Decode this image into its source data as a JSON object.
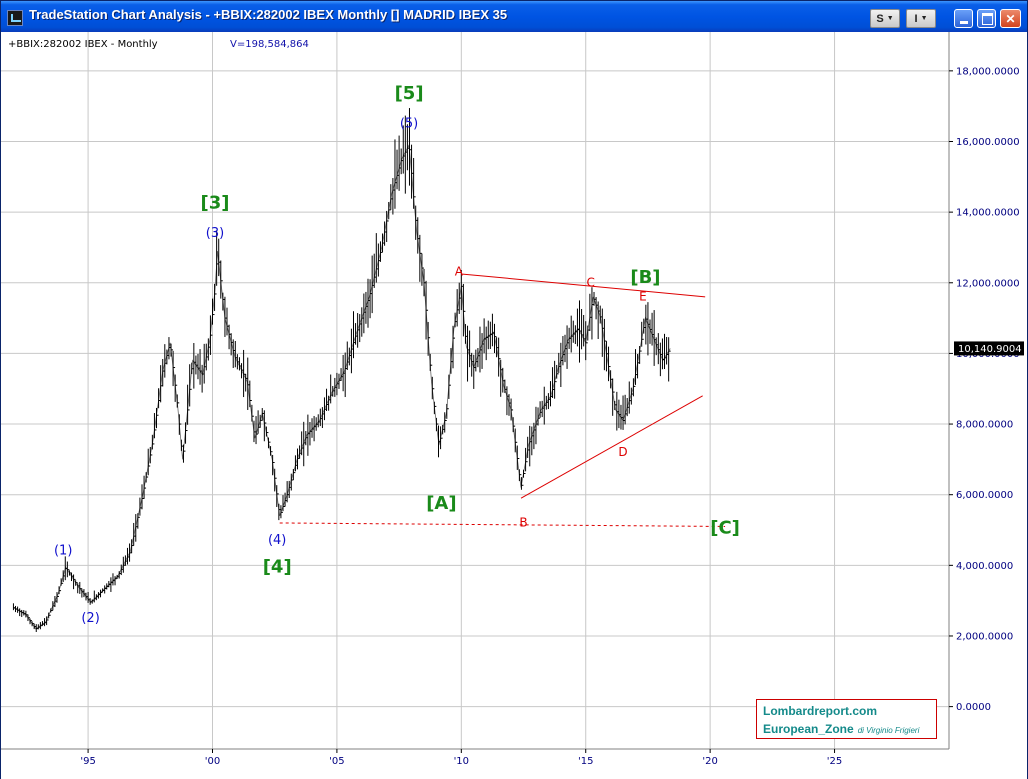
{
  "window": {
    "title": "TradeStation Chart Analysis - +BBIX:282002 IBEX Monthly [] MADRID IBEX 35",
    "buttons": {
      "s_label": "S",
      "i_label": "I"
    }
  },
  "header": {
    "symbol_label": "+BBIX:282002 IBEX - Monthly",
    "volume_label": "V=198,584,864"
  },
  "branding": {
    "line1": "Lombardreport.com",
    "line2": "European_Zone",
    "line2_suffix": "di Virginio Frigieri"
  },
  "colors": {
    "price": "#000000",
    "wave_degree_large": "#1a8a1a",
    "wave_degree_small": "#1010cc",
    "abcde": "#dd0000",
    "grid": "#c8c8c8",
    "axis_text": "#000080"
  },
  "chart_data": {
    "type": "line",
    "title": "",
    "xlabel": "",
    "ylabel": "",
    "x_ticks": [
      {
        "year": 1995,
        "label": "'95"
      },
      {
        "year": 2000,
        "label": "'00"
      },
      {
        "year": 2005,
        "label": "'05"
      },
      {
        "year": 2010,
        "label": "'10"
      },
      {
        "year": 2015,
        "label": "'15"
      },
      {
        "year": 2020,
        "label": "'20"
      },
      {
        "year": 2025,
        "label": "'25"
      }
    ],
    "y_ticks": [
      {
        "value": 0,
        "label": "0.0000"
      },
      {
        "value": 2000,
        "label": "2,000.0000"
      },
      {
        "value": 4000,
        "label": "4,000.0000"
      },
      {
        "value": 6000,
        "label": "6,000.0000"
      },
      {
        "value": 8000,
        "label": "8,000.0000"
      },
      {
        "value": 10000,
        "label": "10,000.0000"
      },
      {
        "value": 12000,
        "label": "12,000.0000"
      },
      {
        "value": 14000,
        "label": "14,000.0000"
      },
      {
        "value": 16000,
        "label": "16,000.0000"
      },
      {
        "value": 18000,
        "label": "18,000.0000"
      }
    ],
    "xlim": [
      1991.5,
      2029.6
    ],
    "ylim": [
      -1200,
      19100
    ],
    "grid": true,
    "last_value": 10140.9004,
    "last_value_label": "10,140.9004",
    "series": [
      {
        "values": [
          [
            1992.0,
            2800
          ],
          [
            1992.5,
            2600
          ],
          [
            1992.9,
            2200
          ],
          [
            1993.3,
            2400
          ],
          [
            1993.8,
            3200
          ],
          [
            1994.1,
            3950
          ],
          [
            1994.6,
            3400
          ],
          [
            1995.1,
            2950
          ],
          [
            1995.6,
            3300
          ],
          [
            1996.2,
            3700
          ],
          [
            1996.7,
            4400
          ],
          [
            1997.2,
            6000
          ],
          [
            1997.6,
            7500
          ],
          [
            1998.0,
            9500
          ],
          [
            1998.3,
            10300
          ],
          [
            1998.6,
            8500
          ],
          [
            1998.8,
            7000
          ],
          [
            1999.2,
            9800
          ],
          [
            1999.6,
            9400
          ],
          [
            1999.9,
            10400
          ],
          [
            2000.1,
            11800
          ],
          [
            2000.2,
            12900
          ],
          [
            2000.5,
            11000
          ],
          [
            2000.9,
            9900
          ],
          [
            2001.4,
            9200
          ],
          [
            2001.7,
            7600
          ],
          [
            2002.0,
            8300
          ],
          [
            2002.4,
            7000
          ],
          [
            2002.7,
            5400
          ],
          [
            2003.0,
            6000
          ],
          [
            2003.4,
            7000
          ],
          [
            2003.8,
            7700
          ],
          [
            2004.3,
            8100
          ],
          [
            2004.8,
            8900
          ],
          [
            2005.3,
            9500
          ],
          [
            2005.8,
            10600
          ],
          [
            2006.3,
            11600
          ],
          [
            2006.8,
            13000
          ],
          [
            2007.2,
            14500
          ],
          [
            2007.6,
            15500
          ],
          [
            2007.9,
            15900
          ],
          [
            2008.2,
            13500
          ],
          [
            2008.5,
            12000
          ],
          [
            2008.8,
            9200
          ],
          [
            2009.1,
            7400
          ],
          [
            2009.4,
            8300
          ],
          [
            2009.7,
            10700
          ],
          [
            2010.0,
            11900
          ],
          [
            2010.2,
            10200
          ],
          [
            2010.5,
            9600
          ],
          [
            2010.9,
            10400
          ],
          [
            2011.3,
            10600
          ],
          [
            2011.7,
            9100
          ],
          [
            2012.0,
            8400
          ],
          [
            2012.4,
            6200
          ],
          [
            2012.7,
            7400
          ],
          [
            2013.2,
            8400
          ],
          [
            2013.6,
            8800
          ],
          [
            2013.9,
            9600
          ],
          [
            2014.3,
            10400
          ],
          [
            2014.7,
            10700
          ],
          [
            2015.0,
            10300
          ],
          [
            2015.3,
            11600
          ],
          [
            2015.6,
            11000
          ],
          [
            2015.9,
            9700
          ],
          [
            2016.2,
            8400
          ],
          [
            2016.5,
            8100
          ],
          [
            2016.9,
            9000
          ],
          [
            2017.2,
            10200
          ],
          [
            2017.4,
            11000
          ],
          [
            2017.8,
            10300
          ],
          [
            2018.1,
            9800
          ],
          [
            2018.4,
            10140
          ]
        ]
      }
    ],
    "annotations": [
      {
        "label": "(1)",
        "x": 1994.0,
        "y": 4300,
        "style": "small"
      },
      {
        "label": "(2)",
        "x": 1995.1,
        "y": 2400,
        "style": "small"
      },
      {
        "label": "(3)",
        "x": 2000.1,
        "y": 13300,
        "style": "small"
      },
      {
        "label": "[3]",
        "x": 2000.1,
        "y": 14100,
        "style": "large"
      },
      {
        "label": "(4)",
        "x": 2002.6,
        "y": 4600,
        "style": "small"
      },
      {
        "label": "[4]",
        "x": 2002.6,
        "y": 3800,
        "style": "large"
      },
      {
        "label": "(5)",
        "x": 2007.9,
        "y": 16400,
        "style": "small"
      },
      {
        "label": "[5]",
        "x": 2007.9,
        "y": 17200,
        "style": "large"
      },
      {
        "label": "[A]",
        "x": 2009.2,
        "y": 5600,
        "style": "large"
      },
      {
        "label": "A",
        "x": 2009.9,
        "y": 12200,
        "style": "letter"
      },
      {
        "label": "B",
        "x": 2012.5,
        "y": 5100,
        "style": "letter"
      },
      {
        "label": "C",
        "x": 2015.2,
        "y": 11900,
        "style": "letter"
      },
      {
        "label": "D",
        "x": 2016.5,
        "y": 7100,
        "style": "letter"
      },
      {
        "label": "E",
        "x": 2017.3,
        "y": 11500,
        "style": "letter"
      },
      {
        "label": "[B]",
        "x": 2017.4,
        "y": 12000,
        "style": "large"
      },
      {
        "label": "[C]",
        "x": 2020.6,
        "y": 4900,
        "style": "large"
      }
    ],
    "trendlines": [
      {
        "from": [
          2010.0,
          12250
        ],
        "to": [
          2019.8,
          11600
        ],
        "style": "solid"
      },
      {
        "from": [
          2012.4,
          5900
        ],
        "to": [
          2019.7,
          8800
        ],
        "style": "solid"
      },
      {
        "from": [
          2002.7,
          5200
        ],
        "to": [
          2020.6,
          5100
        ],
        "style": "dashed"
      }
    ]
  }
}
